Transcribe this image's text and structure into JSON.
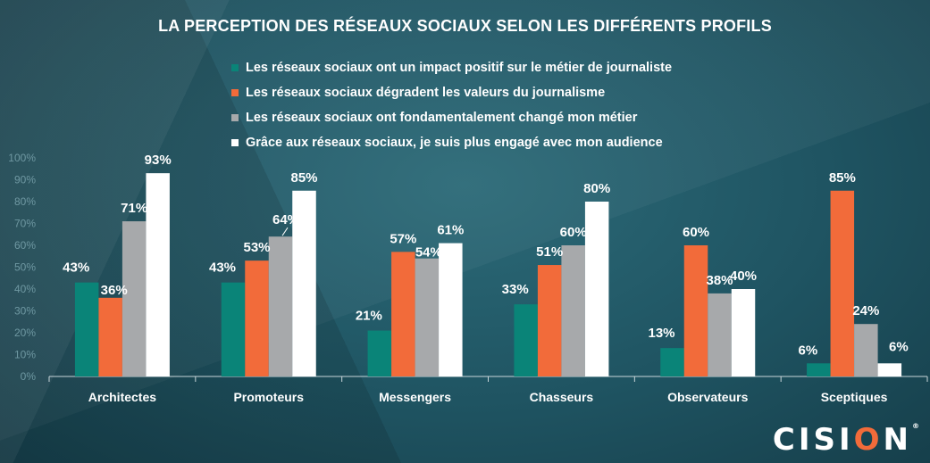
{
  "title": "LA PERCEPTION DES RÉSEAUX SOCIAUX SELON LES DIFFÉRENTS PROFILS",
  "logo": {
    "before": "CISI",
    "o": "O",
    "after": "N",
    "mark": "®"
  },
  "chart_data": {
    "type": "bar",
    "categories": [
      "Architectes",
      "Promoteurs",
      "Messengers",
      "Chasseurs",
      "Observateurs",
      "Sceptiques"
    ],
    "series": [
      {
        "name": "Les réseaux sociaux ont un impact positif sur le métier de journaliste",
        "color": "#0a8478",
        "values": [
          43,
          43,
          21,
          33,
          13,
          6
        ]
      },
      {
        "name": "Les réseaux sociaux dégradent les valeurs du journalisme",
        "color": "#f26b3a",
        "values": [
          36,
          53,
          57,
          51,
          60,
          85
        ]
      },
      {
        "name": "Les réseaux sociaux ont fondamentalement changé mon métier",
        "color": "#a7a9ab",
        "values": [
          71,
          64,
          54,
          60,
          38,
          24
        ]
      },
      {
        "name": "Grâce aux réseaux sociaux, je suis plus engagé avec mon audience",
        "color": "#ffffff",
        "values": [
          93,
          85,
          61,
          80,
          40,
          6
        ]
      }
    ],
    "data_labels": [
      [
        "43%",
        "43%",
        "21%",
        "33%",
        "13%",
        "6%"
      ],
      [
        "36%",
        "53%",
        "57%",
        "51%",
        "60%",
        "85%"
      ],
      [
        "71%",
        "64%",
        "54%",
        "60%",
        "38%",
        "24%"
      ],
      [
        "93%",
        "85%",
        "61%",
        "80%",
        "40%",
        "6%"
      ]
    ],
    "y_ticks": [
      "0%",
      "10%",
      "20%",
      "30%",
      "40%",
      "50%",
      "60%",
      "70%",
      "80%",
      "90%",
      "100%"
    ],
    "ylim": [
      0,
      100
    ],
    "grid": false,
    "legend_position": "top"
  }
}
